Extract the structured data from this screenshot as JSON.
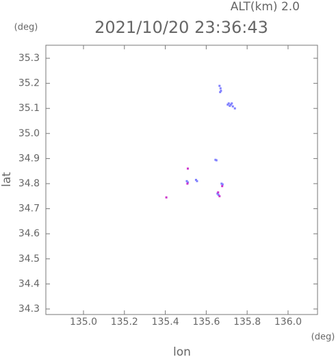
{
  "chart_data": {
    "type": "scatter",
    "title": "2021/10/20 23:36:43",
    "annotation": "ALT(km) 2.0",
    "x_label": "lon",
    "y_label": "lat",
    "x_unit": "(deg)",
    "y_unit": "(deg)",
    "xlim": [
      134.816,
      136.144
    ],
    "ylim": [
      34.278,
      35.352
    ],
    "xticks": [
      {
        "value": 135.0,
        "label": "135.0"
      },
      {
        "value": 135.2,
        "label": "135.2"
      },
      {
        "value": 135.4,
        "label": "135.4"
      },
      {
        "value": 135.6,
        "label": "135.6"
      },
      {
        "value": 135.8,
        "label": "135.8"
      },
      {
        "value": 136.0,
        "label": "136.0"
      }
    ],
    "yticks": [
      {
        "value": 34.3,
        "label": "34.3"
      },
      {
        "value": 34.4,
        "label": "34.4"
      },
      {
        "value": 34.5,
        "label": "34.5"
      },
      {
        "value": 34.6,
        "label": "34.6"
      },
      {
        "value": 34.7,
        "label": "34.7"
      },
      {
        "value": 34.8,
        "label": "34.8"
      },
      {
        "value": 34.9,
        "label": "34.9"
      },
      {
        "value": 35.0,
        "label": "35.0"
      },
      {
        "value": 35.1,
        "label": "35.1"
      },
      {
        "value": 35.2,
        "label": "35.2"
      },
      {
        "value": 35.3,
        "label": "35.3"
      }
    ],
    "series": [
      {
        "color": "#8080ff",
        "x": [
          135.665,
          135.67,
          135.672,
          135.668,
          135.71,
          135.715,
          135.72,
          135.725,
          135.73,
          135.705,
          135.74,
          135.645,
          135.65,
          135.505,
          135.51,
          135.55,
          135.555,
          135.675,
          135.68,
          135.655,
          135.66
        ],
        "y": [
          35.19,
          35.18,
          35.17,
          35.165,
          35.12,
          35.11,
          35.115,
          35.12,
          35.108,
          35.115,
          35.1,
          34.895,
          34.893,
          34.81,
          34.805,
          34.815,
          34.81,
          34.8,
          34.797,
          34.76,
          34.755
        ]
      },
      {
        "color": "#cc33cc",
        "x": [
          135.405,
          135.51,
          135.508,
          135.665,
          135.658,
          135.678
        ],
        "y": [
          34.745,
          34.86,
          34.8,
          34.75,
          34.765,
          34.79
        ]
      }
    ]
  }
}
